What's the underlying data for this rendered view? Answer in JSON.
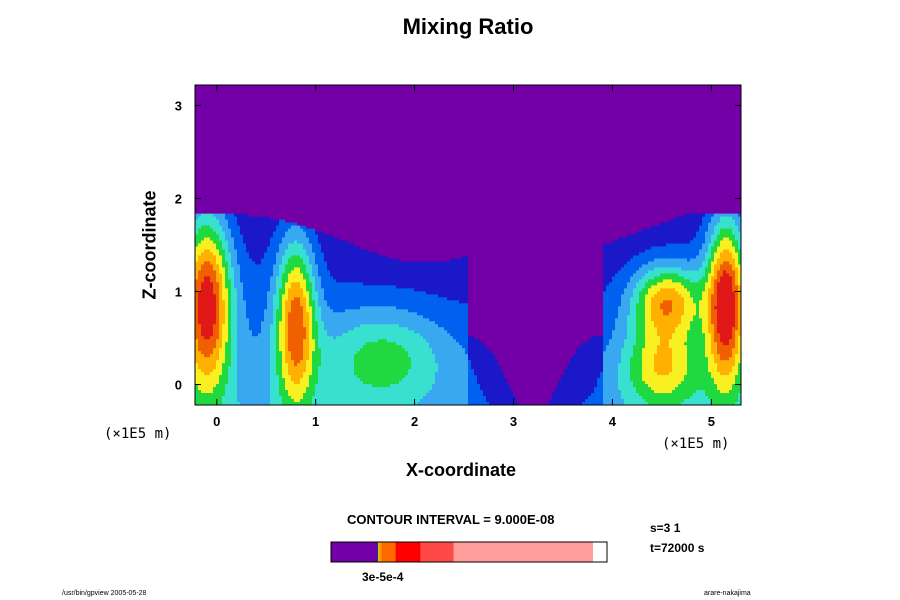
{
  "chart_data": {
    "type": "heatmap",
    "title": "Mixing Ratio",
    "xlabel": "X-coordinate",
    "ylabel": "Z-coordinate",
    "x_unit": "(×1E5 m)",
    "x_ticks": [
      0,
      1,
      2,
      3,
      4,
      5
    ],
    "y_ticks": [
      0,
      1,
      2,
      3
    ],
    "xlim": [
      -0.22,
      5.3
    ],
    "ylim": [
      -0.22,
      3.22
    ],
    "contour_interval_text": "CONTOUR INTERVAL = 9.000E-08",
    "colorbar_label_text": "3e-5e-4",
    "levels": [
      0,
      1,
      2,
      3,
      4,
      5,
      6,
      7,
      8,
      9
    ],
    "level_colors": [
      "#7200a6",
      "#1a18c8",
      "#0060f0",
      "#38a8f0",
      "#38e0d0",
      "#20d840",
      "#f8f020",
      "#ffb000",
      "#f06000",
      "#e01818"
    ],
    "colorbar": {
      "segments": [
        {
          "color": "#7200a6",
          "width": 0.166
        },
        {
          "color": "#2020b0",
          "width": 0.004
        },
        {
          "color": "#e0c000",
          "width": 0.006
        },
        {
          "color": "#ff9000",
          "width": 0.008
        },
        {
          "color": "#ff6a00",
          "width": 0.05
        },
        {
          "color": "#ff0000",
          "width": 0.09
        },
        {
          "color": "#ff4848",
          "width": 0.12
        },
        {
          "color": "#ff9c9c",
          "width": 0.504
        }
      ]
    },
    "s_text": "s=3 1",
    "t_text": "t=72000 s",
    "footer_left": "/usr/bin/gpview 2005-05-28",
    "footer_right": "arare-nakajima"
  }
}
